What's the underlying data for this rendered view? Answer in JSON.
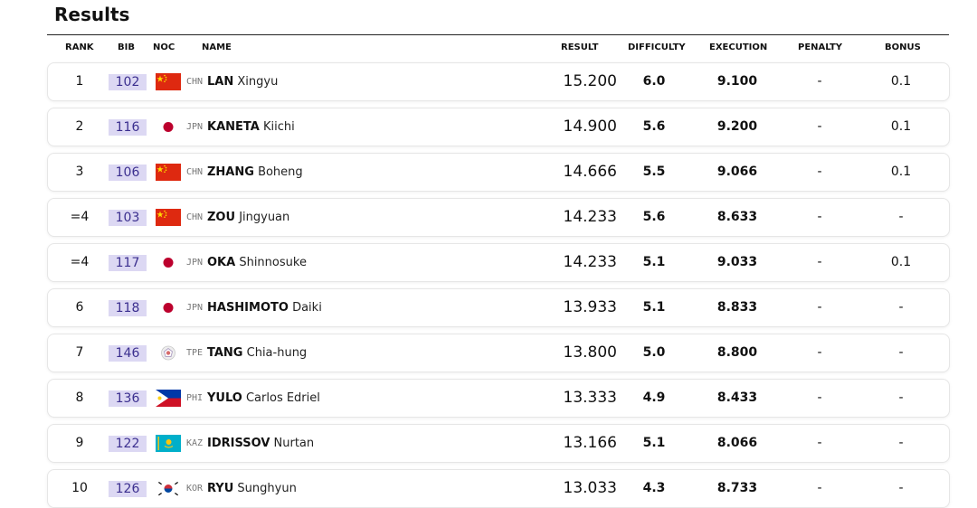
{
  "title": "Results",
  "columns": {
    "rank": "RANK",
    "bib": "BIB",
    "noc": "NOC",
    "name": "NAME",
    "result": "RESULT",
    "difficulty": "DIFFICULTY",
    "execution": "EXECUTION",
    "penalty": "PENALTY",
    "bonus": "BONUS"
  },
  "rows": [
    {
      "rank": "1",
      "bib": "102",
      "noc": "CHN",
      "flag": "china-flag-icon",
      "last": "LAN",
      "first": "Xingyu",
      "result": "15.200",
      "difficulty": "6.0",
      "execution": "9.100",
      "penalty": "-",
      "bonus": "0.1"
    },
    {
      "rank": "2",
      "bib": "116",
      "noc": "JPN",
      "flag": "japan-flag-icon",
      "last": "KANETA",
      "first": "Kiichi",
      "result": "14.900",
      "difficulty": "5.6",
      "execution": "9.200",
      "penalty": "-",
      "bonus": "0.1"
    },
    {
      "rank": "3",
      "bib": "106",
      "noc": "CHN",
      "flag": "china-flag-icon",
      "last": "ZHANG",
      "first": "Boheng",
      "result": "14.666",
      "difficulty": "5.5",
      "execution": "9.066",
      "penalty": "-",
      "bonus": "0.1"
    },
    {
      "rank": "=4",
      "bib": "103",
      "noc": "CHN",
      "flag": "china-flag-icon",
      "last": "ZOU",
      "first": "Jingyuan",
      "result": "14.233",
      "difficulty": "5.6",
      "execution": "8.633",
      "penalty": "-",
      "bonus": "-"
    },
    {
      "rank": "=4",
      "bib": "117",
      "noc": "JPN",
      "flag": "japan-flag-icon",
      "last": "OKA",
      "first": "Shinnosuke",
      "result": "14.233",
      "difficulty": "5.1",
      "execution": "9.033",
      "penalty": "-",
      "bonus": "0.1"
    },
    {
      "rank": "6",
      "bib": "118",
      "noc": "JPN",
      "flag": "japan-flag-icon",
      "last": "HASHIMOTO",
      "first": "Daiki",
      "result": "13.933",
      "difficulty": "5.1",
      "execution": "8.833",
      "penalty": "-",
      "bonus": "-"
    },
    {
      "rank": "7",
      "bib": "146",
      "noc": "TPE",
      "flag": "chinese-taipei-flag-icon",
      "last": "TANG",
      "first": "Chia-hung",
      "result": "13.800",
      "difficulty": "5.0",
      "execution": "8.800",
      "penalty": "-",
      "bonus": "-"
    },
    {
      "rank": "8",
      "bib": "136",
      "noc": "PHI",
      "flag": "philippines-flag-icon",
      "last": "YULO",
      "first": "Carlos Edriel",
      "result": "13.333",
      "difficulty": "4.9",
      "execution": "8.433",
      "penalty": "-",
      "bonus": "-"
    },
    {
      "rank": "9",
      "bib": "122",
      "noc": "KAZ",
      "flag": "kazakhstan-flag-icon",
      "last": "IDRISSOV",
      "first": "Nurtan",
      "result": "13.166",
      "difficulty": "5.1",
      "execution": "8.066",
      "penalty": "-",
      "bonus": "-"
    },
    {
      "rank": "10",
      "bib": "126",
      "noc": "KOR",
      "flag": "korea-flag-icon",
      "last": "RYU",
      "first": "Sunghyun",
      "result": "13.033",
      "difficulty": "4.3",
      "execution": "8.733",
      "penalty": "-",
      "bonus": "-"
    }
  ],
  "colors": {
    "bib_bg": "#dcd8f3",
    "bib_text": "#3b2f8f",
    "china_red": "#de2910",
    "china_yellow": "#ffde00",
    "japan_red": "#bc002d",
    "kaz_blue": "#00afca",
    "kaz_gold": "#fec50c",
    "phi_blue": "#0038a8",
    "phi_red": "#ce1126"
  }
}
